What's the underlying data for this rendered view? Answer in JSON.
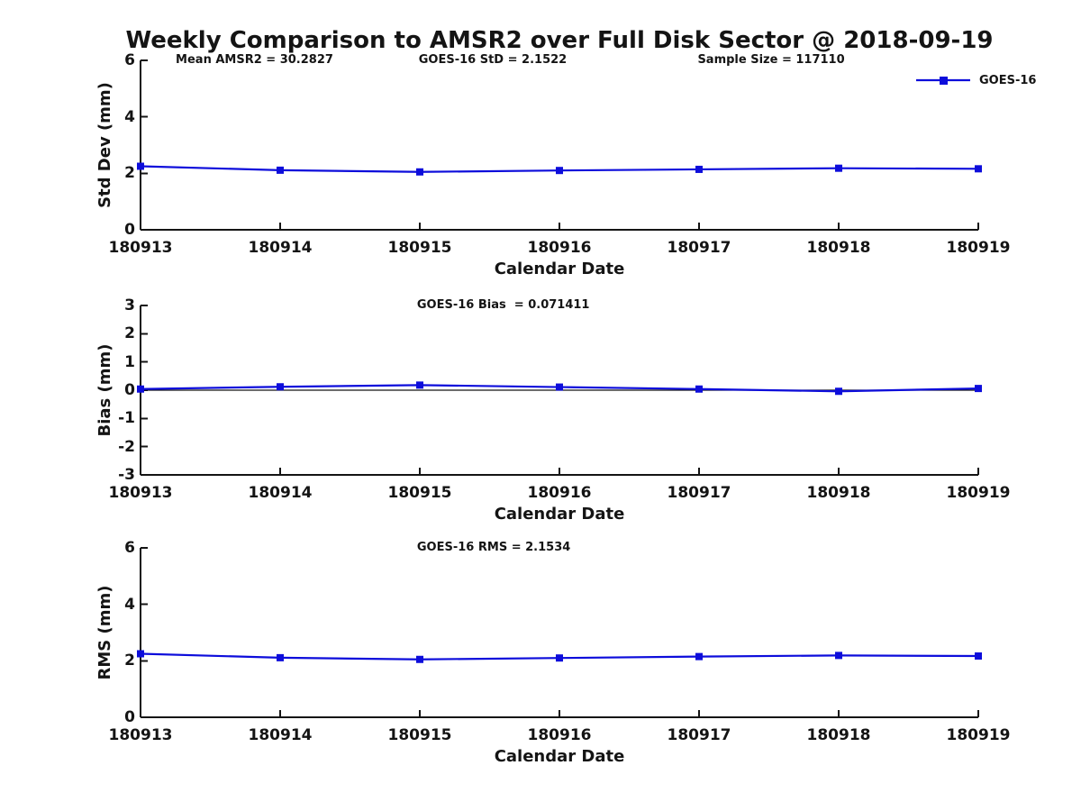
{
  "header": {
    "title": "Weekly Comparison to AMSR2 over Full Disk Sector @ 2018-09-19"
  },
  "legend": {
    "label": "GOES-16",
    "color": "#0d0ddb"
  },
  "axis_color": "#141414",
  "chart_data": [
    {
      "type": "line",
      "annotations": [
        "Mean AMSR2 = 30.2827",
        "GOES-16 StD = 2.1522",
        "Sample Size = 117110"
      ],
      "categories": [
        "180913",
        "180914",
        "180915",
        "180916",
        "180917",
        "180918",
        "180919"
      ],
      "series": [
        {
          "name": "GOES-16",
          "color": "#0d0ddb",
          "marker": "square",
          "values": [
            2.25,
            2.11,
            2.05,
            2.1,
            2.14,
            2.18,
            2.16
          ]
        }
      ],
      "xlabel": "Calendar Date",
      "ylabel": "Std Dev (mm)",
      "ylim": [
        0,
        6
      ],
      "yticks": [
        0,
        2,
        4,
        6
      ],
      "zero_line": false,
      "grid": false,
      "legend_position": "top-right"
    },
    {
      "type": "line",
      "annotations": [
        "GOES-16 Bias  = 0.071411"
      ],
      "categories": [
        "180913",
        "180914",
        "180915",
        "180916",
        "180917",
        "180918",
        "180919"
      ],
      "series": [
        {
          "name": "GOES-16",
          "color": "#0d0ddb",
          "marker": "square",
          "values": [
            0.04,
            0.12,
            0.18,
            0.11,
            0.04,
            -0.04,
            0.06
          ]
        }
      ],
      "xlabel": "Calendar Date",
      "ylabel": "Bias (mm)",
      "ylim": [
        -3,
        3
      ],
      "yticks": [
        -3,
        -2,
        -1,
        0,
        1,
        2,
        3
      ],
      "zero_line": true,
      "grid": false
    },
    {
      "type": "line",
      "annotations": [
        "GOES-16 RMS = 2.1534"
      ],
      "categories": [
        "180913",
        "180914",
        "180915",
        "180916",
        "180917",
        "180918",
        "180919"
      ],
      "series": [
        {
          "name": "GOES-16",
          "color": "#0d0ddb",
          "marker": "square",
          "values": [
            2.25,
            2.11,
            2.05,
            2.1,
            2.15,
            2.19,
            2.17
          ]
        }
      ],
      "xlabel": "Calendar Date",
      "ylabel": "RMS (mm)",
      "ylim": [
        0,
        6
      ],
      "yticks": [
        0,
        2,
        4,
        6
      ],
      "zero_line": false,
      "grid": false
    }
  ]
}
